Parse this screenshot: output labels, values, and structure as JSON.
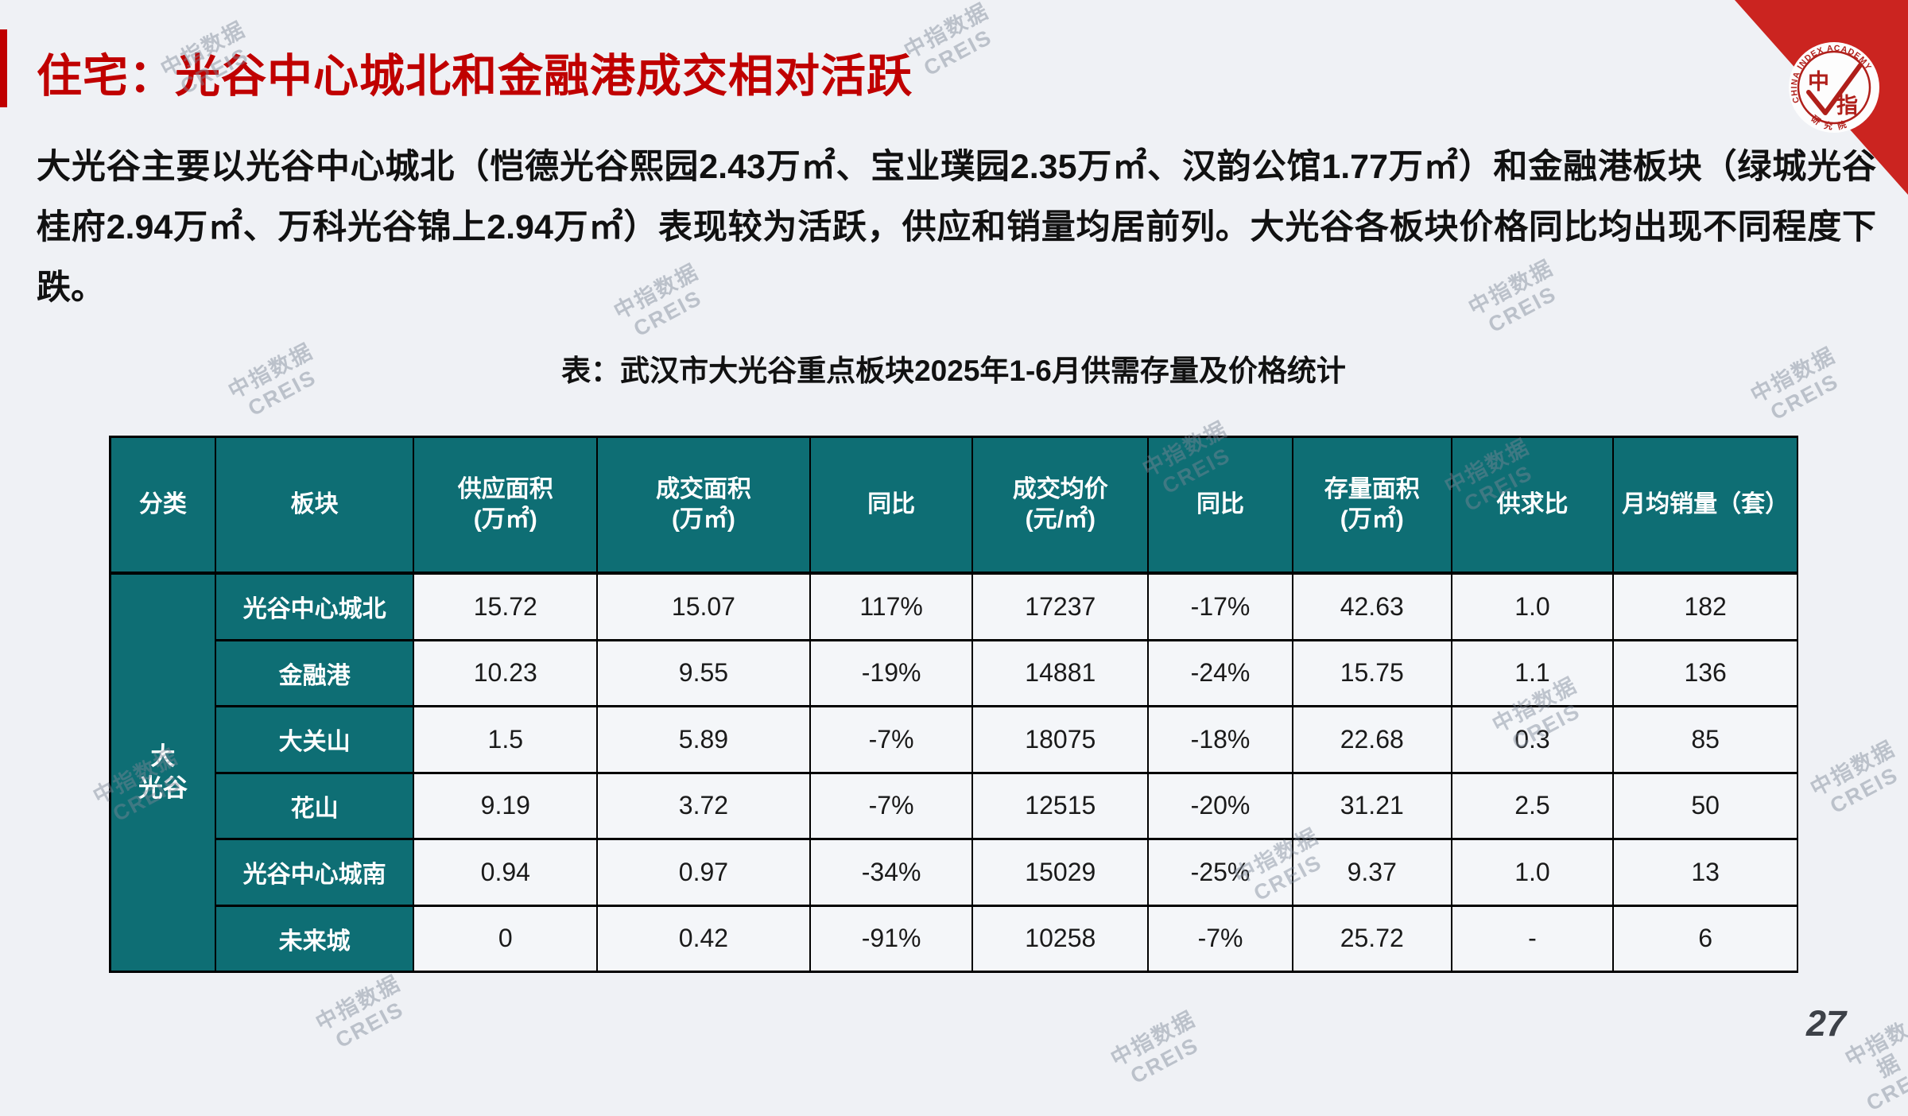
{
  "slide": {
    "title": "住宅：光谷中心城北和金融港成交相对活跃",
    "paragraph": "大光谷主要以光谷中心城北（恺德光谷熙园2.43万㎡、宝业璞园2.35万㎡、汉韵公馆1.77万㎡）和金融港板块（绿城光谷桂府2.94万㎡、万科光谷锦上2.94万㎡）表现较为活跃，供应和销量均居前列。大光谷各板块价格同比均出现不同程度下跌。",
    "page_number": "27"
  },
  "logo": {
    "name_cn": "中指",
    "ring_text_top": "CHINA INDEX ACADEMY",
    "ring_text_bottom": "研 究 院"
  },
  "watermark": {
    "text": "中指数据\nCREIS"
  },
  "colors": {
    "accent_red": "#c00000",
    "corner_red": "#cb2420",
    "table_teal": "#0e6e74",
    "cell_bg": "#f4f6f9",
    "page_bg": "#eff1f5"
  },
  "table": {
    "caption": "表：武汉市大光谷重点板块2025年1-6月供需存量及价格统计",
    "headers": [
      "分类",
      "板块",
      "供应面积\n(万㎡)",
      "成交面积\n(万㎡)",
      "同比",
      "成交均价\n(元/㎡)",
      "同比",
      "存量面积\n(万㎡)",
      "供求比",
      "月均销量（套）"
    ],
    "category": "大\n光谷",
    "rows": [
      {
        "plate": "光谷中心城北",
        "supply": "15.72",
        "deal": "15.07",
        "deal_yoy": "117%",
        "price": "17237",
        "price_yoy": "-17%",
        "stock": "42.63",
        "ratio": "1.0",
        "monthly_sales": "182"
      },
      {
        "plate": "金融港",
        "supply": "10.23",
        "deal": "9.55",
        "deal_yoy": "-19%",
        "price": "14881",
        "price_yoy": "-24%",
        "stock": "15.75",
        "ratio": "1.1",
        "monthly_sales": "136"
      },
      {
        "plate": "大关山",
        "supply": "1.5",
        "deal": "5.89",
        "deal_yoy": "-7%",
        "price": "18075",
        "price_yoy": "-18%",
        "stock": "22.68",
        "ratio": "0.3",
        "monthly_sales": "85"
      },
      {
        "plate": "花山",
        "supply": "9.19",
        "deal": "3.72",
        "deal_yoy": "-7%",
        "price": "12515",
        "price_yoy": "-20%",
        "stock": "31.21",
        "ratio": "2.5",
        "monthly_sales": "50"
      },
      {
        "plate": "光谷中心城南",
        "supply": "0.94",
        "deal": "0.97",
        "deal_yoy": "-34%",
        "price": "15029",
        "price_yoy": "-25%",
        "stock": "9.37",
        "ratio": "1.0",
        "monthly_sales": "13"
      },
      {
        "plate": "未来城",
        "supply": "0",
        "deal": "0.42",
        "deal_yoy": "-91%",
        "price": "10258",
        "price_yoy": "-7%",
        "stock": "25.72",
        "ratio": "-",
        "monthly_sales": "6"
      }
    ]
  }
}
